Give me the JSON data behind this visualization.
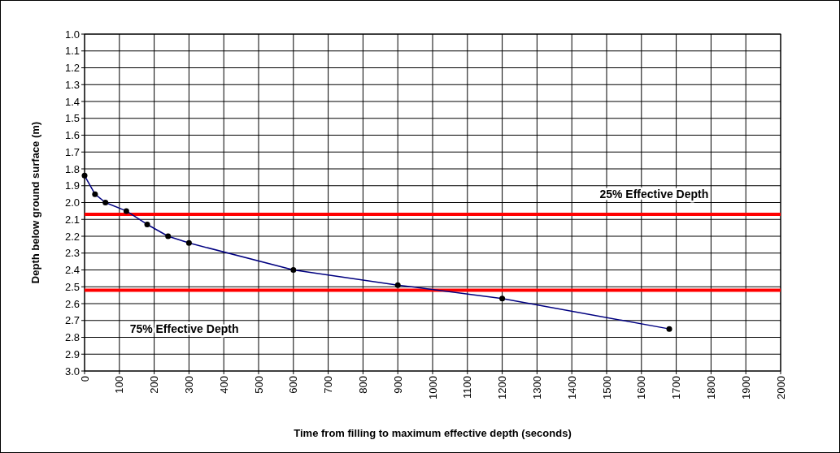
{
  "chart_data": {
    "type": "line",
    "xlabel": "Time from filling to maximum effective depth (seconds)",
    "ylabel": "Depth below ground surface (m)",
    "x": [
      0,
      30,
      60,
      120,
      180,
      240,
      300,
      600,
      900,
      1200,
      1680
    ],
    "series": [
      {
        "color": "#000080",
        "values": [
          1.84,
          1.95,
          2.0,
          2.05,
          2.13,
          2.2,
          2.24,
          2.4,
          2.49,
          2.57,
          2.75
        ]
      }
    ],
    "marker": "circle",
    "xlim": [
      0,
      2000
    ],
    "xticks": [
      0,
      100,
      200,
      300,
      400,
      500,
      600,
      700,
      800,
      900,
      1000,
      1100,
      1200,
      1300,
      1400,
      1500,
      1600,
      1700,
      1800,
      1900,
      2000
    ],
    "ylim": [
      3.0,
      1.0
    ],
    "yticks": [
      {
        "value": 1.0,
        "label": "1.0"
      },
      1.1,
      1.2,
      1.3,
      1.4,
      1.5,
      1.6,
      1.7,
      1.8,
      1.9,
      {
        "value": 2.0,
        "label": "2.0"
      },
      2.1,
      2.2,
      2.3,
      2.4,
      2.5,
      2.6,
      2.7,
      2.8,
      2.9,
      {
        "value": 3.0,
        "label": "3.0"
      }
    ],
    "grid": true,
    "ref_lines": [
      {
        "axis": "y",
        "value": 2.07,
        "label": "25% Effective Depth",
        "color": "#ff0000"
      },
      {
        "axis": "y",
        "value": 2.52,
        "label": "75% Effective Depth",
        "color": "#ff0000"
      }
    ]
  }
}
